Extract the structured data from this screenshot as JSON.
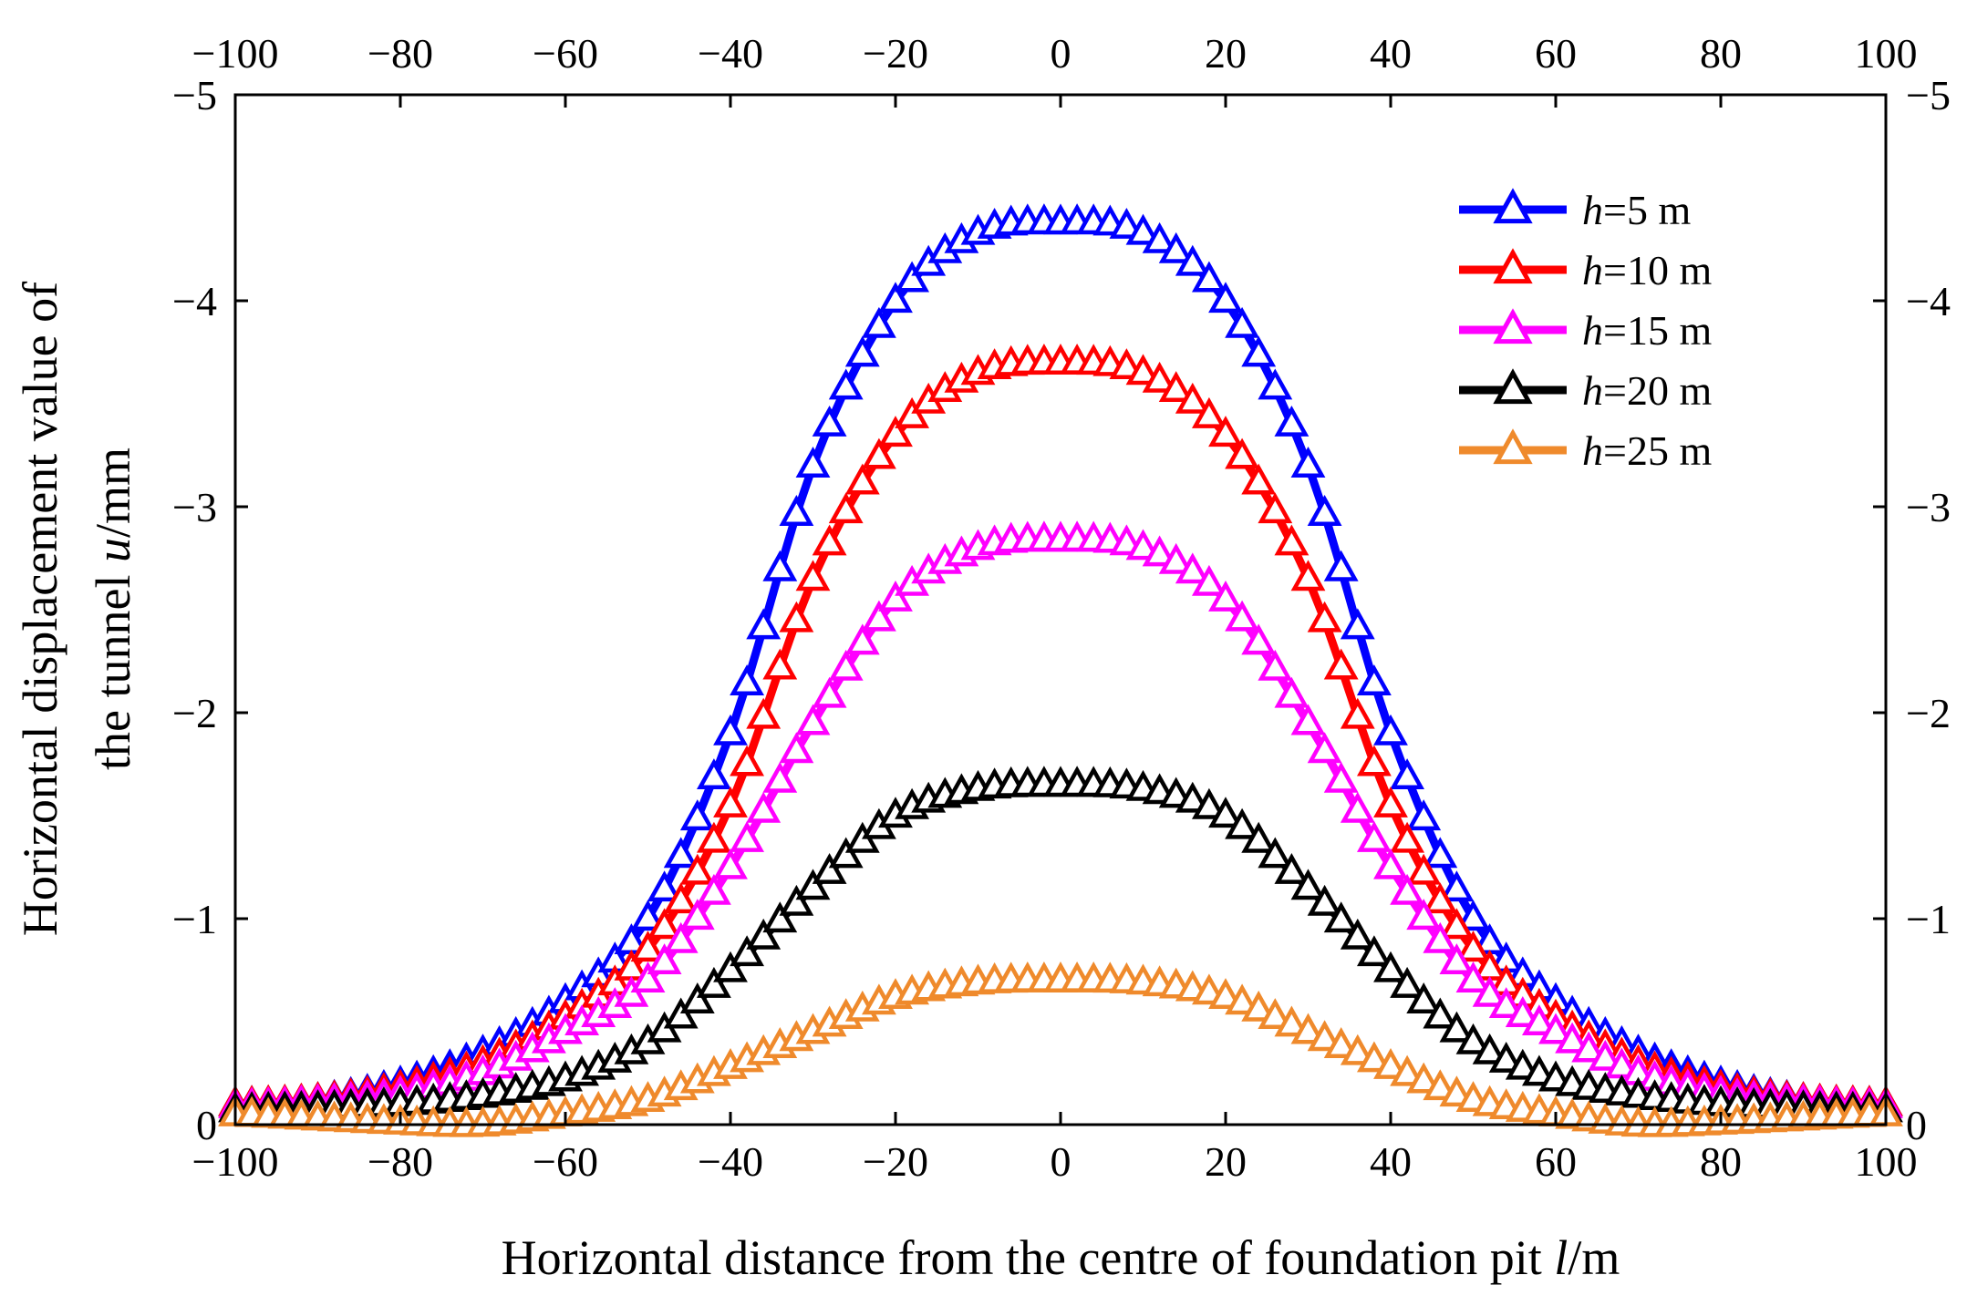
{
  "chart_data": {
    "type": "line",
    "title": "",
    "xlabel_parts": [
      "Horizontal distance from the centre of foundation pit ",
      "l",
      "/m"
    ],
    "ylabel_line1": "Horizontal displacement value of",
    "ylabel_line2_parts": [
      "the tunnel ",
      "u",
      "/mm"
    ],
    "xlim": [
      -100,
      100
    ],
    "ylim": [
      0,
      -5
    ],
    "x_ticks": [
      -100,
      -80,
      -60,
      -40,
      -20,
      0,
      20,
      40,
      60,
      80,
      100
    ],
    "x_tick_labels": [
      "−100",
      "−80",
      "−60",
      "−40",
      "−20",
      "0",
      "20",
      "40",
      "60",
      "80",
      "100"
    ],
    "y_ticks": [
      0,
      -1,
      -2,
      -3,
      -4,
      -5
    ],
    "y_tick_labels": [
      "0",
      "−1",
      "−2",
      "−3",
      "−4",
      "−5"
    ],
    "grid": false,
    "legend_position": "top-right",
    "marker": "open-triangle",
    "x": [
      -100,
      -90,
      -80,
      -70,
      -60,
      -50,
      -40,
      -30,
      -20,
      -10,
      0,
      10,
      20,
      30,
      40,
      50,
      60,
      70,
      80,
      90,
      100
    ],
    "series": [
      {
        "name_var": "h",
        "name_rest": "=5 m",
        "color": "#0000ff",
        "values": [
          -0.1,
          -0.12,
          -0.2,
          -0.35,
          -0.6,
          -1.0,
          -1.9,
          -3.2,
          -4.0,
          -4.33,
          -4.38,
          -4.33,
          -4.0,
          -3.2,
          -1.9,
          -1.0,
          -0.6,
          -0.35,
          -0.2,
          -0.12,
          -0.1
        ]
      },
      {
        "name_var": "h",
        "name_rest": "=10 m",
        "color": "#ff0000",
        "values": [
          -0.1,
          -0.12,
          -0.18,
          -0.3,
          -0.52,
          -0.85,
          -1.55,
          -2.65,
          -3.35,
          -3.65,
          -3.7,
          -3.65,
          -3.35,
          -2.65,
          -1.55,
          -0.85,
          -0.52,
          -0.3,
          -0.18,
          -0.12,
          -0.1
        ]
      },
      {
        "name_var": "h",
        "name_rest": "=15 m",
        "color": "#ff00ff",
        "values": [
          -0.09,
          -0.11,
          -0.15,
          -0.25,
          -0.45,
          -0.7,
          -1.25,
          -1.95,
          -2.55,
          -2.8,
          -2.84,
          -2.8,
          -2.55,
          -1.95,
          -1.25,
          -0.7,
          -0.45,
          -0.25,
          -0.15,
          -0.11,
          -0.09
        ]
      },
      {
        "name_var": "h",
        "name_rest": "=20 m",
        "color": "#000000",
        "values": [
          -0.07,
          -0.08,
          -0.1,
          -0.14,
          -0.22,
          -0.4,
          -0.75,
          -1.15,
          -1.5,
          -1.63,
          -1.65,
          -1.63,
          -1.5,
          -1.15,
          -0.75,
          -0.4,
          -0.22,
          -0.14,
          -0.1,
          -0.08,
          -0.07
        ]
      },
      {
        "name_var": "h",
        "name_rest": "=25 m",
        "color": "#ef8a2c",
        "values": [
          -0.05,
          -0.03,
          -0.01,
          0.0,
          -0.05,
          -0.12,
          -0.28,
          -0.45,
          -0.62,
          -0.69,
          -0.7,
          -0.69,
          -0.62,
          -0.45,
          -0.28,
          -0.12,
          -0.05,
          0.0,
          -0.01,
          -0.03,
          -0.05
        ]
      }
    ]
  }
}
